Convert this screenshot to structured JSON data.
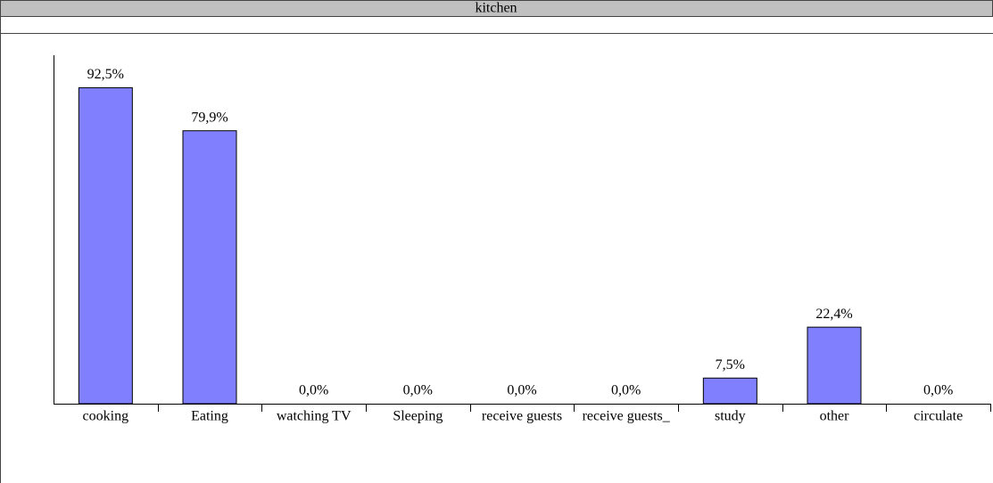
{
  "chart_data": {
    "type": "bar",
    "title": "kitchen",
    "categories": [
      "cooking",
      "Eating",
      "watching TV",
      "Sleeping",
      "receive guests",
      "receive guests_",
      "study",
      "other",
      "circulate"
    ],
    "values": [
      92.5,
      79.9,
      0,
      0,
      0,
      0,
      7.5,
      22.4,
      0
    ],
    "value_labels": [
      "92,5%",
      "79,9%",
      "0,0%",
      "0,0%",
      "0,0%",
      "0,0%",
      "7,5%",
      "22,4%",
      "0,0%"
    ],
    "color": "#8080ff",
    "ylim": [
      0,
      102
    ],
    "grid": false
  }
}
